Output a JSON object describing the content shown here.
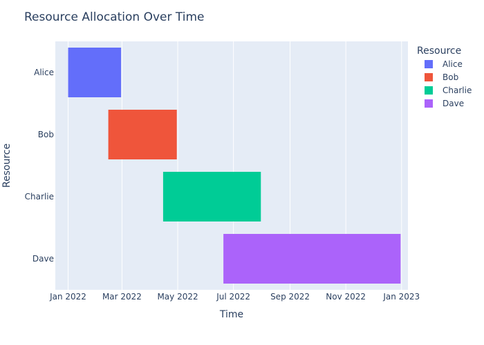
{
  "chart_data": {
    "type": "gantt",
    "title": "Resource Allocation Over Time",
    "xlabel": "Time",
    "ylabel": "Resource",
    "legend_title": "Resource",
    "legend_position": "right",
    "grid": true,
    "plot_bg": "#E5ECF6",
    "xlim": [
      "2021-12-18",
      "2023-01-08"
    ],
    "xticks": [
      {
        "date": "2022-01-01",
        "label": "Jan 2022"
      },
      {
        "date": "2022-03-01",
        "label": "Mar 2022"
      },
      {
        "date": "2022-05-01",
        "label": "May 2022"
      },
      {
        "date": "2022-07-01",
        "label": "Jul 2022"
      },
      {
        "date": "2022-09-01",
        "label": "Sep 2022"
      },
      {
        "date": "2022-11-01",
        "label": "Nov 2022"
      },
      {
        "date": "2023-01-01",
        "label": "Jan 2023"
      }
    ],
    "categories": [
      "Alice",
      "Bob",
      "Charlie",
      "Dave"
    ],
    "tasks": [
      {
        "resource": "Alice",
        "start": "2022-01-01",
        "end": "2022-02-28",
        "color": "#636EFA"
      },
      {
        "resource": "Bob",
        "start": "2022-02-14",
        "end": "2022-04-30",
        "color": "#EF553B"
      },
      {
        "resource": "Charlie",
        "start": "2022-04-15",
        "end": "2022-07-31",
        "color": "#00CC96"
      },
      {
        "resource": "Dave",
        "start": "2022-06-20",
        "end": "2022-12-31",
        "color": "#AB63FA"
      }
    ]
  }
}
